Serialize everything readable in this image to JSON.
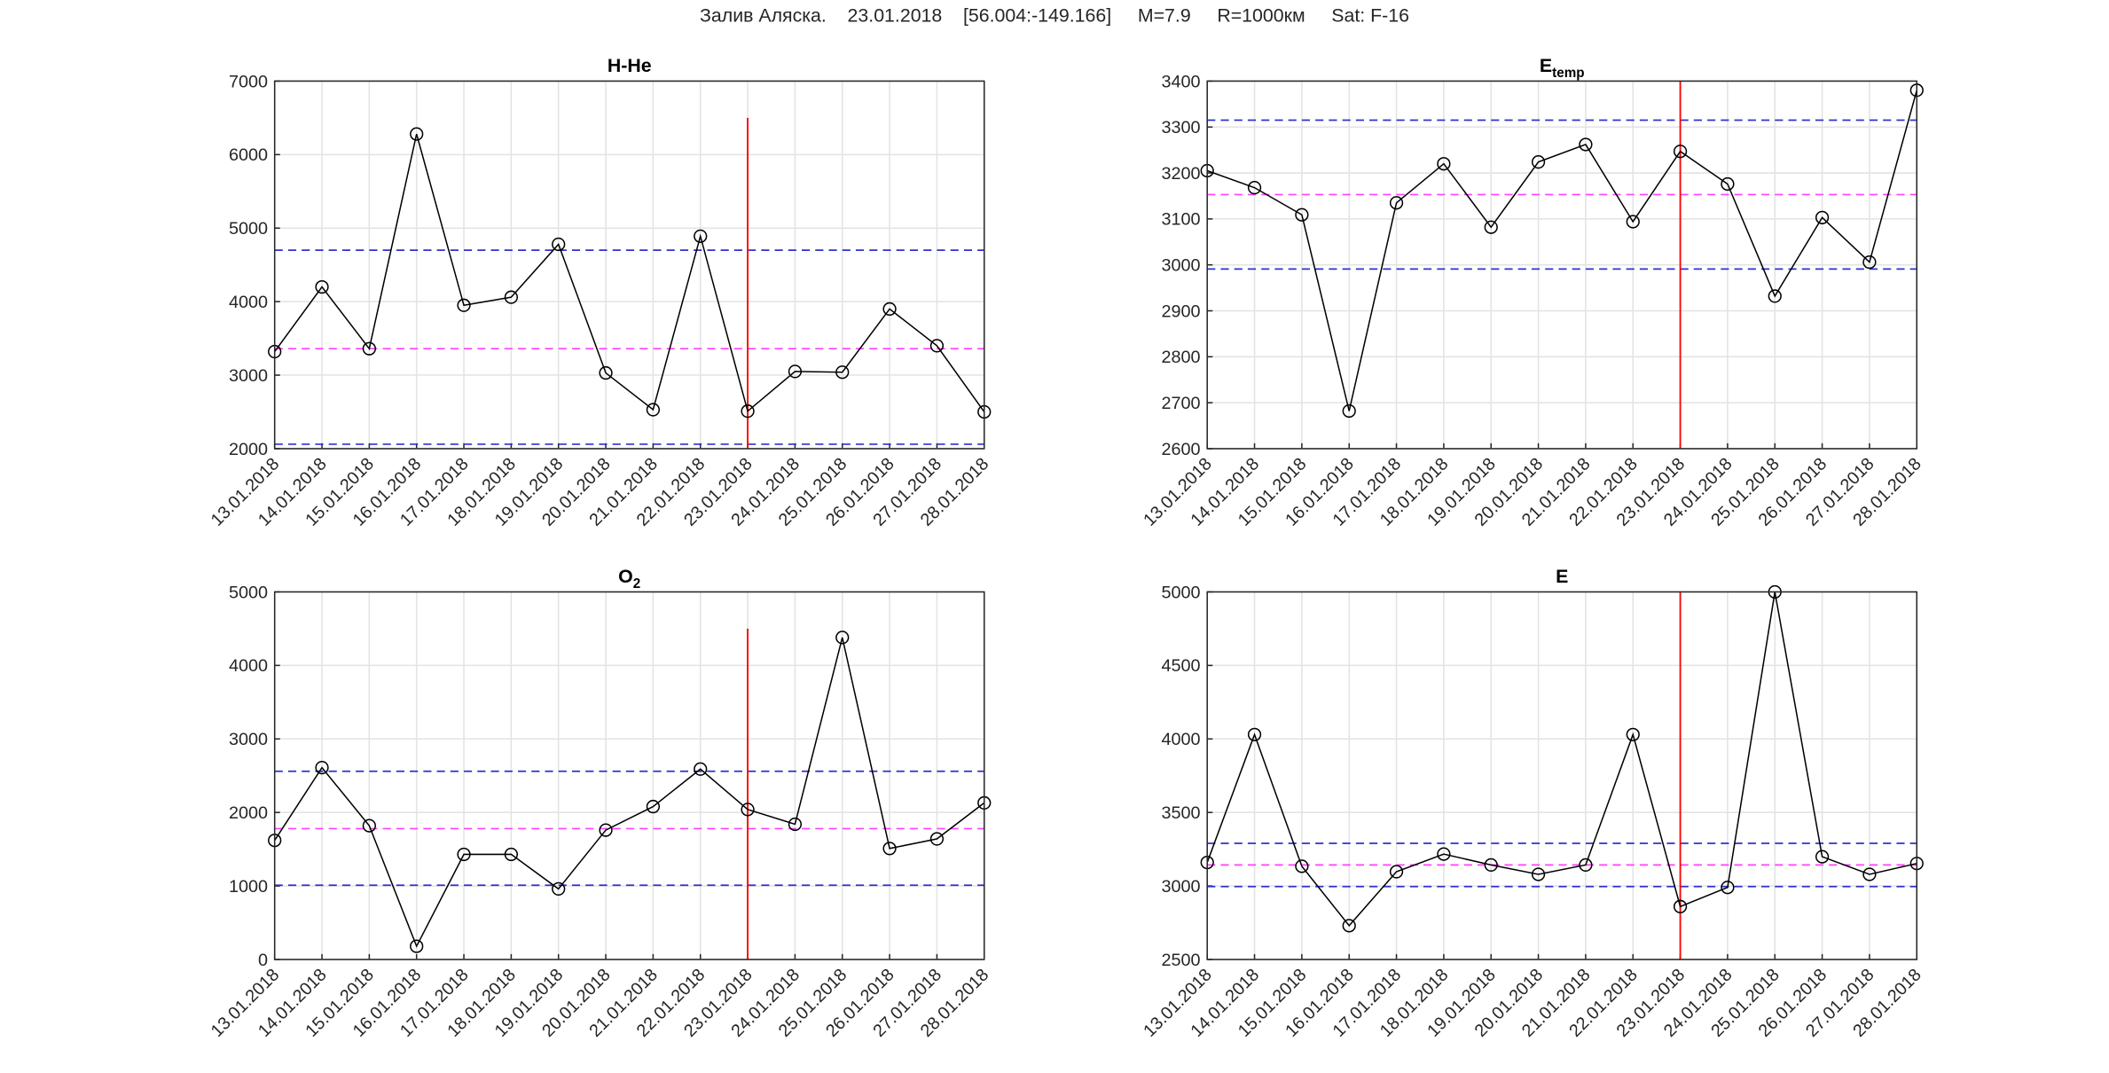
{
  "title": "Залив Аляска.    23.01.2018    [56.004:-149.166]     M=7.9     R=1000км     Sat: F-16",
  "chart_data": [
    {
      "type": "line",
      "title": "H-He",
      "categories": [
        "13.01.2018",
        "14.01.2018",
        "15.01.2018",
        "16.01.2018",
        "17.01.2018",
        "18.01.2018",
        "19.01.2018",
        "20.01.2018",
        "21.01.2018",
        "22.01.2018",
        "23.01.2018",
        "24.01.2018",
        "25.01.2018",
        "26.01.2018",
        "27.01.2018",
        "28.01.2018"
      ],
      "values": [
        3320,
        4200,
        3360,
        6280,
        3950,
        4060,
        4780,
        3030,
        2530,
        4890,
        2510,
        3050,
        3040,
        3900,
        3400,
        2500
      ],
      "color": "#000000",
      "ylim": [
        2000,
        7000
      ],
      "yticks": [
        2000,
        3000,
        4000,
        5000,
        6000,
        7000
      ],
      "grid": true,
      "hlines": [
        {
          "value": 4700,
          "color": "#3030d0"
        },
        {
          "value": 3360,
          "color": "#ff40ff"
        },
        {
          "value": 2060,
          "color": "#3030d0"
        }
      ],
      "event_date": "23.01.2018",
      "event_top": 6500,
      "event_color": "#ff0000"
    },
    {
      "type": "line",
      "title": "E",
      "subscript": "temp",
      "categories": [
        "13.01.2018",
        "14.01.2018",
        "15.01.2018",
        "16.01.2018",
        "17.01.2018",
        "18.01.2018",
        "19.01.2018",
        "20.01.2018",
        "21.01.2018",
        "22.01.2018",
        "23.01.2018",
        "24.01.2018",
        "25.01.2018",
        "26.01.2018",
        "27.01.2018",
        "28.01.2018"
      ],
      "values": [
        3205,
        3168,
        3109,
        2682,
        3135,
        3220,
        3082,
        3224,
        3262,
        3094,
        3247,
        3176,
        2932,
        3103,
        3006,
        3380
      ],
      "color": "#000000",
      "ylim": [
        2600,
        3400
      ],
      "yticks": [
        2600,
        2700,
        2800,
        2900,
        3000,
        3100,
        3200,
        3300,
        3400
      ],
      "grid": true,
      "hlines": [
        {
          "value": 3315,
          "color": "#3030d0"
        },
        {
          "value": 3153,
          "color": "#ff40ff"
        },
        {
          "value": 2991,
          "color": "#3030d0"
        }
      ],
      "event_date": "23.01.2018",
      "event_color": "#ff0000"
    },
    {
      "type": "line",
      "title": "O",
      "subscript": "2",
      "categories": [
        "13.01.2018",
        "14.01.2018",
        "15.01.2018",
        "16.01.2018",
        "17.01.2018",
        "18.01.2018",
        "19.01.2018",
        "20.01.2018",
        "21.01.2018",
        "22.01.2018",
        "23.01.2018",
        "24.01.2018",
        "25.01.2018",
        "26.01.2018",
        "27.01.2018",
        "28.01.2018"
      ],
      "values": [
        1620,
        2610,
        1820,
        180,
        1430,
        1430,
        960,
        1760,
        2080,
        2590,
        2040,
        1840,
        4380,
        1510,
        1640,
        2130
      ],
      "color": "#000000",
      "ylim": [
        0,
        5000
      ],
      "yticks": [
        0,
        1000,
        2000,
        3000,
        4000,
        5000
      ],
      "grid": true,
      "hlines": [
        {
          "value": 2560,
          "color": "#3030d0"
        },
        {
          "value": 1780,
          "color": "#ff40ff"
        },
        {
          "value": 1010,
          "color": "#3030d0"
        }
      ],
      "event_date": "23.01.2018",
      "event_top": 4500,
      "event_color": "#ff0000"
    },
    {
      "type": "line",
      "title": "E",
      "categories": [
        "13.01.2018",
        "14.01.2018",
        "15.01.2018",
        "16.01.2018",
        "17.01.2018",
        "18.01.2018",
        "19.01.2018",
        "20.01.2018",
        "21.01.2018",
        "22.01.2018",
        "23.01.2018",
        "24.01.2018",
        "25.01.2018",
        "26.01.2018",
        "27.01.2018",
        "28.01.2018"
      ],
      "values": [
        3160,
        4030,
        3134,
        2730,
        3097,
        3217,
        3143,
        3079,
        3143,
        4030,
        2860,
        2990,
        5000,
        3199,
        3079,
        3153
      ],
      "color": "#000000",
      "ylim": [
        2500,
        5000
      ],
      "yticks": [
        2500,
        3000,
        3500,
        4000,
        4500,
        5000
      ],
      "grid": true,
      "hlines": [
        {
          "value": 3290,
          "color": "#3030d0"
        },
        {
          "value": 3143,
          "color": "#ff40ff"
        },
        {
          "value": 2996,
          "color": "#3030d0"
        }
      ],
      "event_date": "23.01.2018",
      "event_color": "#ff0000"
    }
  ]
}
